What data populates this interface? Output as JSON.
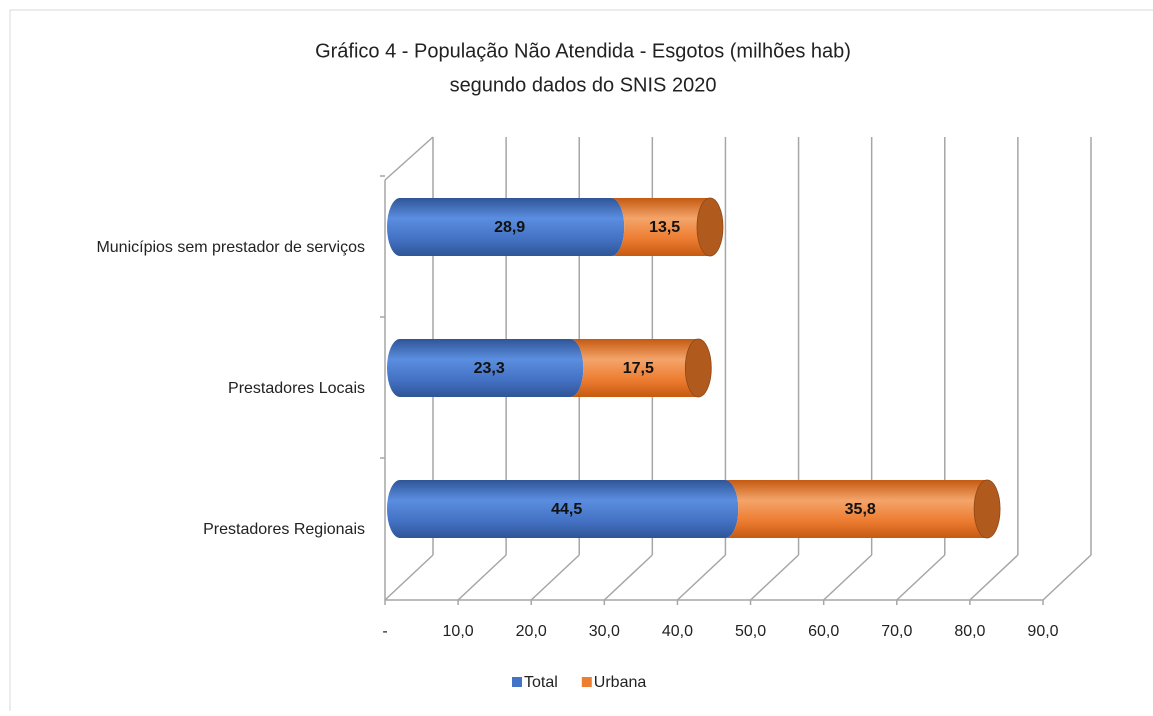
{
  "chart_data": {
    "type": "bar",
    "orientation": "horizontal",
    "stacked": true,
    "title": "Gráfico 4 - População Não Atendida - Esgotos (milhões hab)",
    "subtitle": "segundo dados do SNIS 2020",
    "categories": [
      "Municípios sem prestador de serviços",
      "Prestadores Locais",
      "Prestadores Regionais"
    ],
    "series": [
      {
        "name": "Total",
        "color": "#4472c4",
        "values": [
          28.9,
          23.3,
          44.5
        ],
        "value_labels": [
          "28,9",
          "23,3",
          "44,5"
        ]
      },
      {
        "name": "Urbana",
        "color": "#ed7d31",
        "values": [
          13.5,
          17.5,
          35.8
        ],
        "value_labels": [
          "13,5",
          "17,5",
          "35,8"
        ]
      }
    ],
    "xlim": [
      0,
      90
    ],
    "xticks": [
      {
        "value": 0,
        "label": "-"
      },
      {
        "value": 10,
        "label": "10,0"
      },
      {
        "value": 20,
        "label": "20,0"
      },
      {
        "value": 30,
        "label": "30,0"
      },
      {
        "value": 40,
        "label": "40,0"
      },
      {
        "value": 50,
        "label": "50,0"
      },
      {
        "value": 60,
        "label": "60,0"
      },
      {
        "value": 70,
        "label": "70,0"
      },
      {
        "value": 80,
        "label": "80,0"
      },
      {
        "value": 90,
        "label": "90,0"
      }
    ],
    "grid": true,
    "legend": "bottom"
  }
}
